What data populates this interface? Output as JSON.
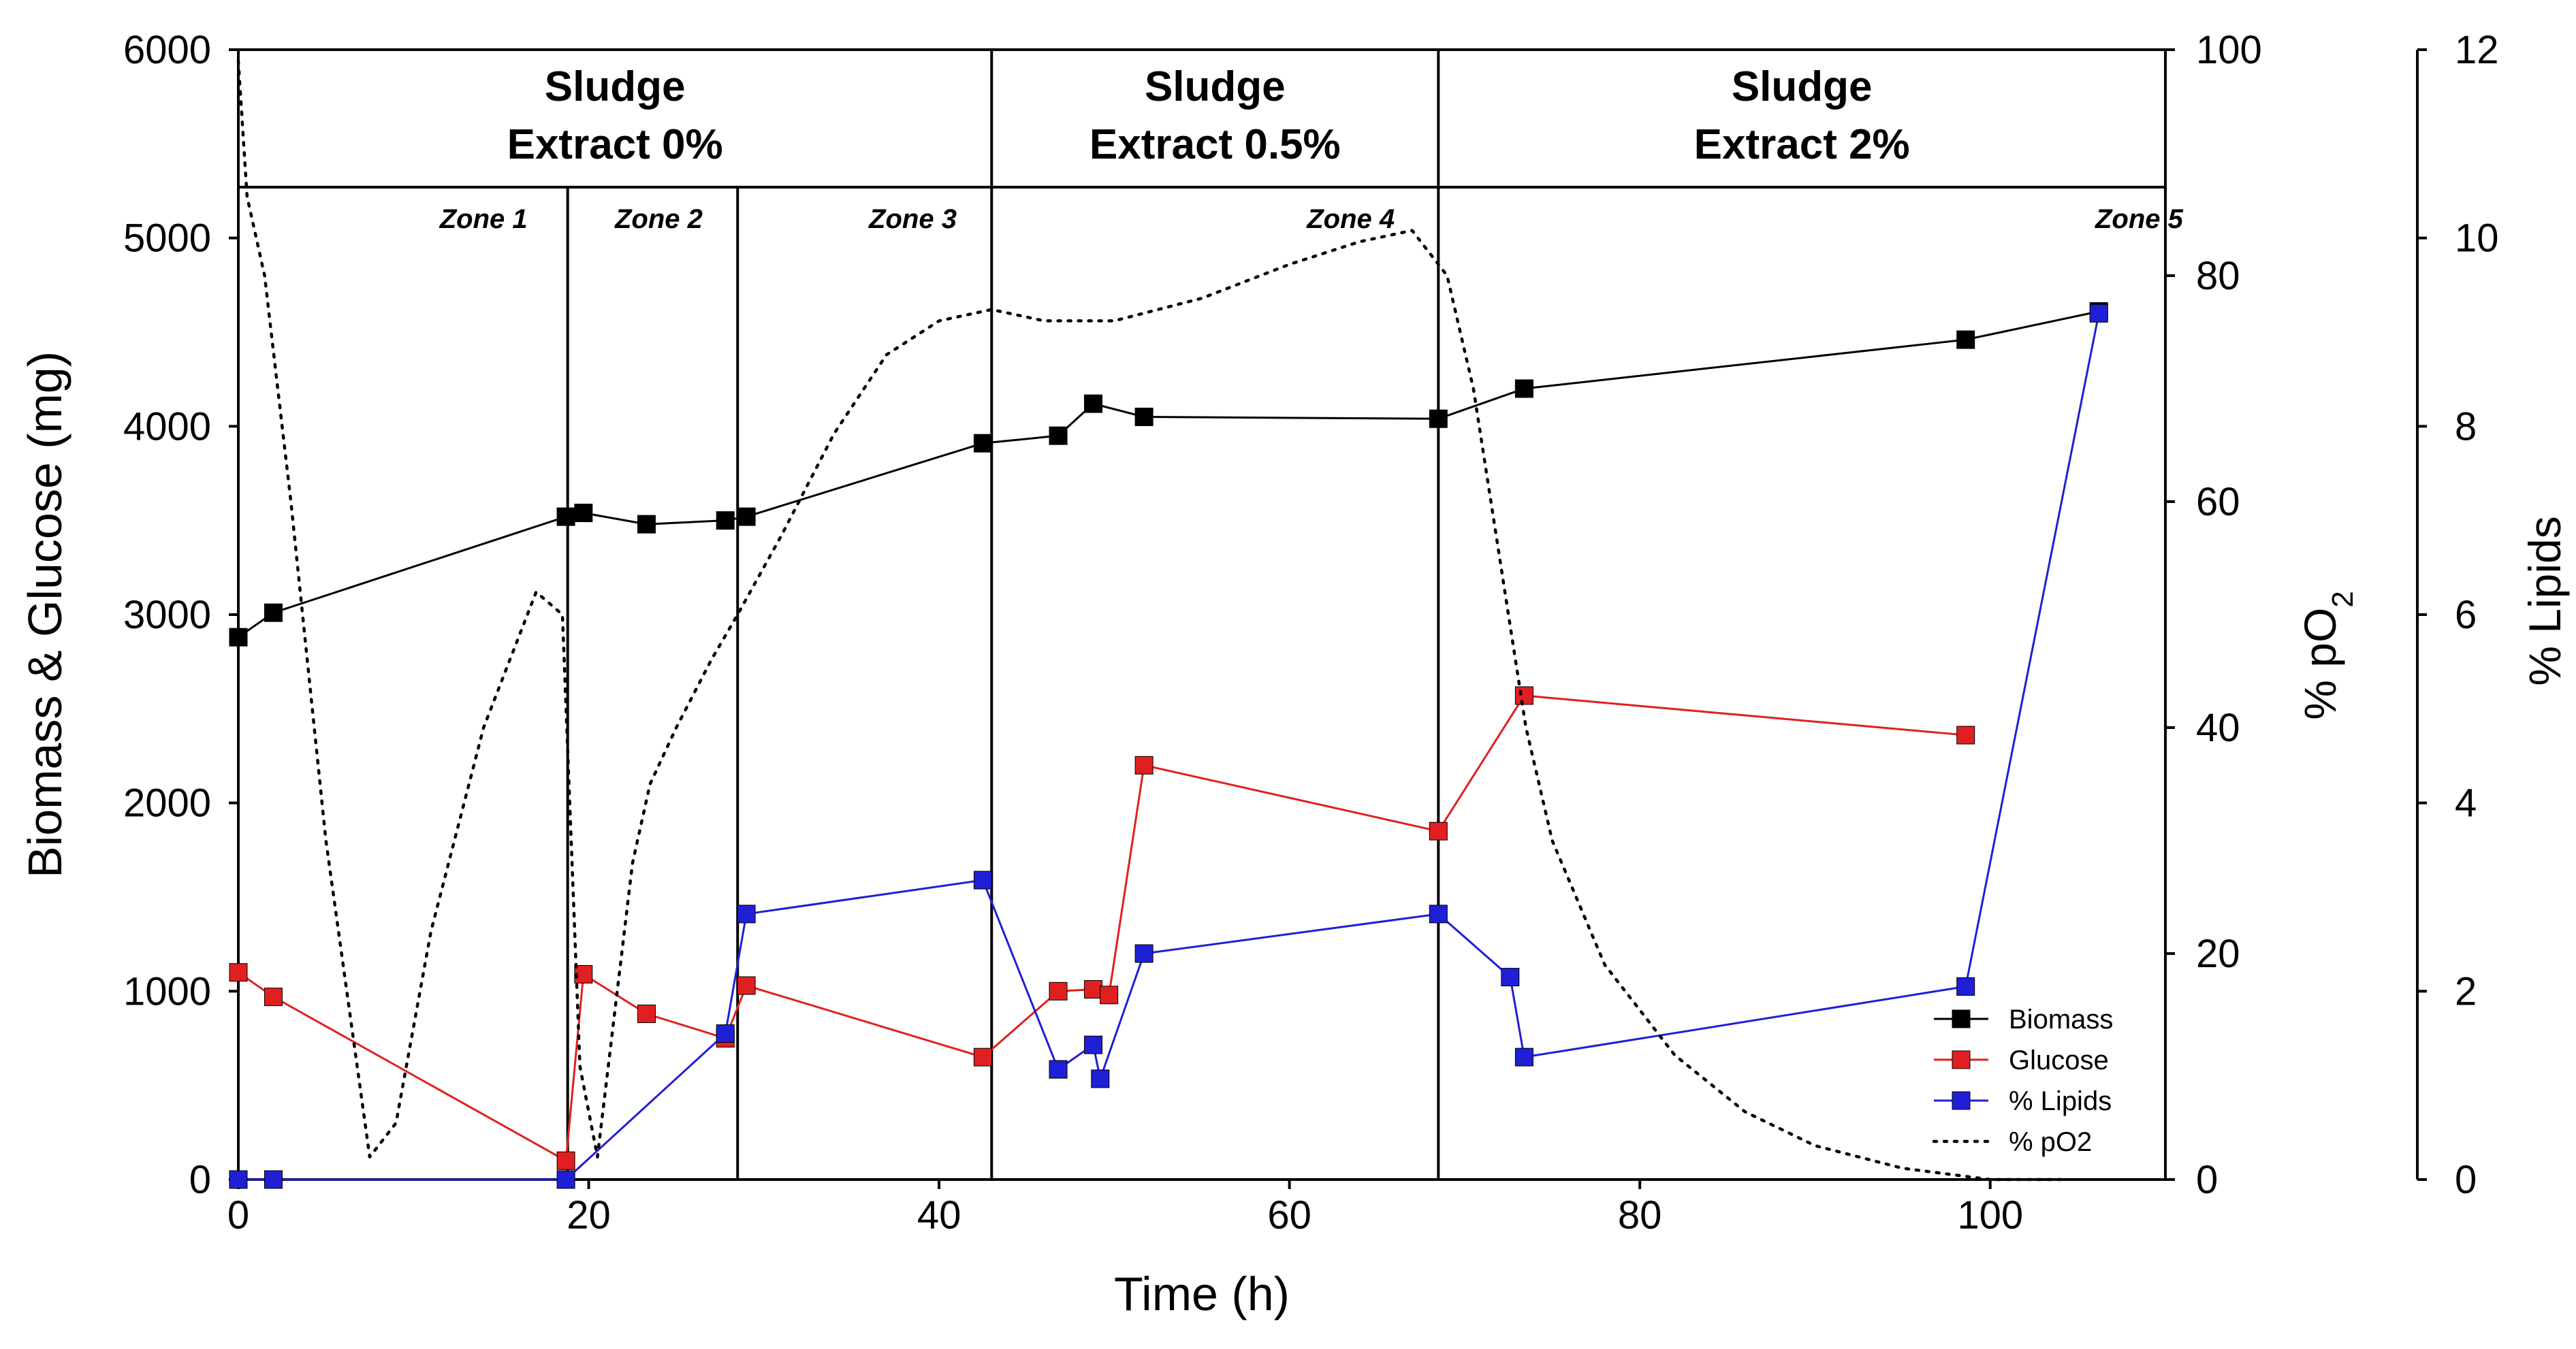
{
  "chart_data": {
    "type": "line",
    "title": "",
    "xlabel": "Time (h)",
    "ylabel_left": "Biomass & Glucose (mg)",
    "ylabel_right1_base": "% pO",
    "ylabel_right1_sub": "2",
    "ylabel_right2": "% Lipids",
    "xlim": [
      0,
      110
    ],
    "xticks": [
      0,
      20,
      40,
      60,
      80,
      100
    ],
    "ylim_left": [
      0,
      6000
    ],
    "yticks_left": [
      0,
      1000,
      2000,
      3000,
      4000,
      5000,
      6000
    ],
    "ylim_right1": [
      0,
      100
    ],
    "yticks_right1": [
      0,
      20,
      40,
      60,
      80,
      100
    ],
    "ylim_right2": [
      0,
      12
    ],
    "yticks_right2": [
      0,
      2,
      4,
      6,
      8,
      10,
      12
    ],
    "phase_band": {
      "y_top": 6000,
      "y_bottom": 5270
    },
    "phases": [
      {
        "label_line1": "Sludge",
        "label_line2": "Extract 0%",
        "x_start": 0,
        "x_end": 43
      },
      {
        "label_line1": "Sludge",
        "label_line2": "Extract 0.5%",
        "x_start": 43,
        "x_end": 68.5
      },
      {
        "label_line1": "Sludge",
        "label_line2": "Extract 2%",
        "x_start": 68.5,
        "x_end": 110
      }
    ],
    "zone_boundaries": [
      18.8,
      28.5,
      43,
      68.5
    ],
    "zones": [
      {
        "label": "Zone 1",
        "x": 14
      },
      {
        "label": "Zone 2",
        "x": 24
      },
      {
        "label": "Zone 3",
        "x": 38.5
      },
      {
        "label": "Zone 4",
        "x": 63.5
      },
      {
        "label": "Zone  5",
        "x": 108.5
      }
    ],
    "series": [
      {
        "name": "Biomass",
        "color": "#000000",
        "axis": "left",
        "x": [
          0,
          2,
          18.7,
          19.7,
          23.3,
          27.8,
          29,
          42.5,
          46.8,
          48.8,
          51.7,
          68.5,
          73.4,
          98.6,
          106.2
        ],
        "y": [
          2880,
          3010,
          3520,
          3540,
          3480,
          3500,
          3520,
          3910,
          3950,
          4120,
          4050,
          4040,
          4200,
          4460,
          4610
        ]
      },
      {
        "name": "Glucose",
        "color": "#e02020",
        "axis": "left",
        "x": [
          0,
          2,
          18.7,
          19.7,
          23.3,
          27.8,
          29,
          42.5,
          46.8,
          48.8,
          49.7,
          51.7,
          68.5,
          73.4,
          98.6
        ],
        "y": [
          1100,
          970,
          100,
          1090,
          880,
          750,
          1030,
          650,
          1000,
          1010,
          980,
          2200,
          1850,
          2570,
          2360
        ]
      },
      {
        "name": "% Lipids",
        "color": "#1f1fd6",
        "axis": "right2",
        "x": [
          0,
          2,
          18.7,
          27.8,
          29,
          42.5,
          46.8,
          48.8,
          49.2,
          51.7,
          68.5,
          72.6,
          73.4,
          98.6,
          106.2
        ],
        "y": [
          0,
          0,
          0,
          1.55,
          2.82,
          3.18,
          1.17,
          1.43,
          1.07,
          2.4,
          2.82,
          2.15,
          1.3,
          2.05,
          9.2
        ]
      },
      {
        "name": "% pO2",
        "color": "#000000",
        "axis": "right1",
        "style": "dotted",
        "x": [
          0,
          0.5,
          1.5,
          3,
          5,
          7.5,
          9,
          11,
          14,
          17,
          18.5,
          19.5,
          20.5,
          21.5,
          22.5,
          23.5,
          25,
          27,
          28.5,
          31,
          34,
          37,
          40,
          43,
          46,
          50,
          55,
          60,
          64,
          67,
          69,
          70.5,
          71.5,
          72.5,
          73.5,
          75,
          78,
          82,
          86,
          90,
          95,
          100,
          104
        ],
        "y": [
          99,
          87,
          80,
          60,
          30,
          2,
          5,
          22,
          40,
          52,
          50,
          10,
          2,
          15,
          28,
          35,
          40,
          46,
          50,
          57,
          66,
          73,
          76,
          77,
          76,
          76,
          78,
          81,
          83,
          84,
          80,
          70,
          60,
          50,
          40,
          30,
          19,
          11,
          6,
          3,
          1,
          0,
          0
        ]
      }
    ],
    "legend": {
      "position": "bottom-right",
      "entries": [
        "Biomass",
        "Glucose",
        "% Lipids",
        "% pO2"
      ]
    }
  }
}
